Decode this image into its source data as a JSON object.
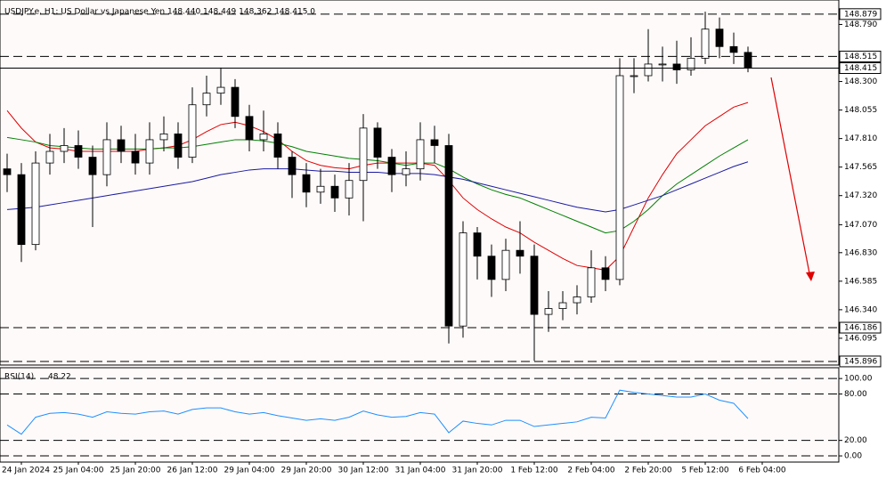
{
  "chart_data": [
    {
      "type": "candlestick",
      "header": "USDJPY.e, H1:  US Dollar vs Japanese Yen  148.440 148.449 148.362 148.415  0",
      "open": [
        147.55,
        147.5,
        146.9,
        147.6,
        147.7,
        147.75,
        147.65,
        147.5,
        147.8,
        147.7,
        147.6,
        147.8,
        147.85,
        147.65,
        148.1,
        148.2,
        148.25,
        148.0,
        147.8,
        147.85,
        147.65,
        147.5,
        147.35,
        147.4,
        147.3,
        147.45,
        147.9,
        147.65,
        147.5,
        147.55,
        147.8,
        147.75,
        146.2,
        147.0,
        146.8,
        146.6,
        146.85,
        146.8,
        146.3,
        146.35,
        146.4,
        146.45,
        146.7,
        146.6,
        148.35,
        148.35,
        148.45,
        148.45,
        148.4,
        148.5,
        148.75,
        148.6,
        148.55
      ],
      "high": [
        147.68,
        147.6,
        147.7,
        147.85,
        147.9,
        147.88,
        147.75,
        147.95,
        147.92,
        147.85,
        147.95,
        148.0,
        147.95,
        148.25,
        148.35,
        148.42,
        148.32,
        148.1,
        148.05,
        147.95,
        147.7,
        147.6,
        147.55,
        147.5,
        147.6,
        148.02,
        147.95,
        147.72,
        147.7,
        147.95,
        147.92,
        147.85,
        147.1,
        147.05,
        146.9,
        146.95,
        147.1,
        146.9,
        146.5,
        146.5,
        146.55,
        146.85,
        146.8,
        148.5,
        148.5,
        148.75,
        148.6,
        148.65,
        148.68,
        148.9,
        148.85,
        148.72,
        148.6
      ],
      "low": [
        147.35,
        146.75,
        146.85,
        147.5,
        147.6,
        147.55,
        147.05,
        147.4,
        147.6,
        147.5,
        147.5,
        147.7,
        147.55,
        147.6,
        148.0,
        148.1,
        147.9,
        147.7,
        147.7,
        147.55,
        147.3,
        147.22,
        147.25,
        147.18,
        147.15,
        147.1,
        147.55,
        147.35,
        147.4,
        147.45,
        147.6,
        146.05,
        146.1,
        146.6,
        146.45,
        146.5,
        146.65,
        145.9,
        146.15,
        146.25,
        146.3,
        146.4,
        146.5,
        146.55,
        148.2,
        148.3,
        148.3,
        148.28,
        148.35,
        148.45,
        148.5,
        148.45,
        148.38
      ],
      "close": [
        147.5,
        146.9,
        147.6,
        147.7,
        147.75,
        147.65,
        147.5,
        147.8,
        147.7,
        147.6,
        147.8,
        147.85,
        147.65,
        148.1,
        148.2,
        148.25,
        148.0,
        147.8,
        147.85,
        147.65,
        147.5,
        147.35,
        147.4,
        147.3,
        147.45,
        147.9,
        147.65,
        147.5,
        147.55,
        147.8,
        147.75,
        146.2,
        147.0,
        146.8,
        146.6,
        146.85,
        146.8,
        146.3,
        146.35,
        146.4,
        146.45,
        146.7,
        146.6,
        148.35,
        148.35,
        148.45,
        148.45,
        148.4,
        148.5,
        148.75,
        148.6,
        148.55,
        148.42
      ],
      "up_color": "#ffffff",
      "down_color": "#000000",
      "series": [
        {
          "color": "#e00000",
          "values": [
            148.05,
            147.9,
            147.78,
            147.73,
            147.72,
            147.7,
            147.7,
            147.7,
            147.7,
            147.7,
            147.72,
            147.73,
            147.75,
            147.8,
            147.87,
            147.93,
            147.95,
            147.92,
            147.87,
            147.8,
            147.7,
            147.62,
            147.58,
            147.56,
            147.55,
            147.58,
            147.6,
            147.6,
            147.6,
            147.6,
            147.58,
            147.45,
            147.3,
            147.2,
            147.12,
            147.05,
            147.0,
            146.92,
            146.85,
            146.78,
            146.72,
            146.7,
            146.68,
            146.8,
            147.05,
            147.3,
            147.5,
            147.68,
            147.8,
            147.92,
            148.0,
            148.08,
            148.12
          ]
        },
        {
          "color": "#008000",
          "values": [
            147.82,
            147.8,
            147.78,
            147.75,
            147.74,
            147.73,
            147.72,
            147.72,
            147.72,
            147.72,
            147.72,
            147.73,
            147.73,
            147.74,
            147.76,
            147.78,
            147.8,
            147.8,
            147.79,
            147.77,
            147.74,
            147.7,
            147.68,
            147.66,
            147.64,
            147.63,
            147.62,
            147.6,
            147.58,
            147.6,
            147.6,
            147.55,
            147.48,
            147.42,
            147.37,
            147.33,
            147.3,
            147.25,
            147.2,
            147.15,
            147.1,
            147.05,
            147.0,
            147.02,
            147.1,
            147.2,
            147.32,
            147.42,
            147.5,
            147.58,
            147.66,
            147.73,
            147.8
          ]
        },
        {
          "color": "#1a1aa0",
          "values": [
            147.2,
            147.21,
            147.22,
            147.24,
            147.26,
            147.28,
            147.3,
            147.32,
            147.34,
            147.36,
            147.38,
            147.4,
            147.42,
            147.44,
            147.47,
            147.5,
            147.52,
            147.54,
            147.55,
            147.55,
            147.55,
            147.54,
            147.53,
            147.53,
            147.52,
            147.52,
            147.52,
            147.51,
            147.51,
            147.51,
            147.5,
            147.48,
            147.46,
            147.43,
            147.4,
            147.37,
            147.34,
            147.31,
            147.28,
            147.25,
            147.22,
            147.2,
            147.18,
            147.2,
            147.24,
            147.28,
            147.32,
            147.37,
            147.42,
            147.47,
            147.52,
            147.57,
            147.61
          ]
        }
      ],
      "ylim": [
        145.865,
        149.0
      ],
      "yticks": [
        {
          "value": 148.79,
          "label": "148.790"
        },
        {
          "value": 148.3,
          "label": "148.300"
        },
        148.055,
        {
          "value": 147.81,
          "label": "147.810"
        },
        147.565,
        {
          "value": 147.32,
          "label": "147.320"
        },
        {
          "value": 147.07,
          "label": "147.070"
        },
        {
          "value": 146.83,
          "label": "146.830"
        },
        146.585,
        {
          "value": 146.34,
          "label": "146.340"
        },
        146.095
      ],
      "levels": [
        {
          "value": 148.879,
          "style": "dashed"
        },
        {
          "value": 148.515,
          "style": "dashed"
        },
        {
          "value": 148.415,
          "style": "solid"
        },
        {
          "value": 146.186,
          "style": "dashed"
        },
        {
          "value": 145.896,
          "style": "dashed"
        }
      ],
      "time_labels": [
        "24 Jan 2024",
        "25 Jan 04:00",
        "25 Jan 20:00",
        "26 Jan 12:00",
        "29 Jan 04:00",
        "29 Jan 20:00",
        "30 Jan 12:00",
        "31 Jan 04:00",
        "31 Jan 20:00",
        "1 Feb 12:00",
        "2 Feb 04:00",
        "2 Feb 20:00",
        "5 Feb 12:00",
        "6 Feb 04:00"
      ],
      "grid": false
    },
    {
      "type": "line",
      "title": "RSI(14)",
      "series": [
        {
          "color": "#1e90ff",
          "values": [
            40,
            28,
            50,
            55,
            56,
            54,
            50,
            57,
            55,
            54,
            57,
            58,
            54,
            60,
            62,
            62,
            57,
            54,
            56,
            52,
            49,
            46,
            48,
            46,
            50,
            58,
            53,
            50,
            51,
            56,
            54,
            30,
            45,
            42,
            40,
            46,
            46,
            38,
            40,
            42,
            44,
            50,
            49,
            85,
            82,
            80,
            78,
            76,
            76,
            80,
            72,
            68,
            48.22
          ]
        }
      ],
      "ylim": [
        -8,
        114
      ],
      "yticks": [
        {
          "value": 100,
          "label": "100.00"
        },
        {
          "value": 80,
          "label": "80.00"
        },
        {
          "value": 20,
          "label": "20.00"
        },
        {
          "value": 0,
          "label": "0.00"
        }
      ],
      "grid": false
    }
  ]
}
